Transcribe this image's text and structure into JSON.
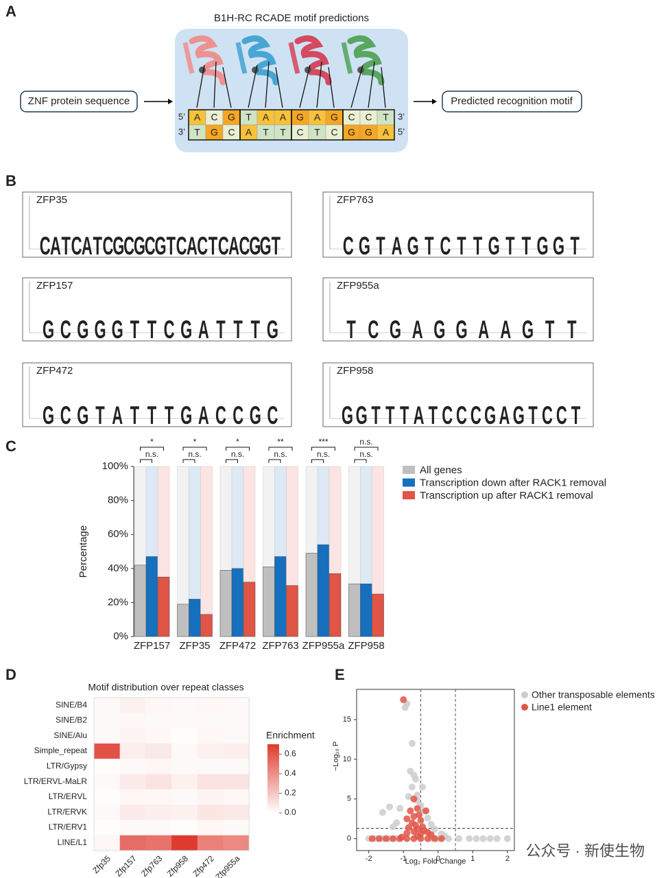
{
  "panel_labels": [
    "A",
    "B",
    "C",
    "D",
    "E"
  ],
  "diagram": {
    "title": "B1H-RC RCADE motif predictions",
    "input": "ZNF protein sequence",
    "output": "Predicted recognition motif",
    "five_prime": "5’",
    "three_prime": "3’",
    "top_strand": [
      "A",
      "C",
      "G",
      "T",
      "A",
      "A",
      "G",
      "A",
      "G",
      "C",
      "C",
      "T"
    ],
    "bottom_strand": [
      "T",
      "G",
      "C",
      "A",
      "T",
      "T",
      "C",
      "T",
      "C",
      "G",
      "G",
      "A"
    ]
  },
  "logos": {
    "colors": {
      "A": "#c8282d",
      "C": "#233d98",
      "G": "#f2a516",
      "T": "#17743a"
    },
    "items": [
      {
        "name": "ZFP35",
        "letters": [
          "C",
          "A",
          "T",
          "C",
          "A",
          "T",
          "C",
          "G",
          "C",
          "G",
          "C",
          "G",
          "T",
          "C",
          "A",
          "C",
          "T",
          "C",
          "A",
          "C",
          "G",
          "G",
          "T"
        ]
      },
      {
        "name": "ZFP763",
        "letters": [
          "C",
          "G",
          "T",
          "A",
          "G",
          "T",
          "C",
          "T",
          "T",
          "G",
          "T",
          "T",
          "G",
          "G",
          "T"
        ]
      },
      {
        "name": "ZFP157",
        "letters": [
          "G",
          "C",
          "G",
          "G",
          "G",
          "T",
          "T",
          "C",
          "G",
          "A",
          "T",
          "T",
          "T",
          "G"
        ]
      },
      {
        "name": "ZFP955a",
        "letters": [
          "T",
          "C",
          "G",
          "A",
          "G",
          "G",
          "A",
          "A",
          "G",
          "T",
          "T"
        ]
      },
      {
        "name": "ZFP472",
        "letters": [
          "G",
          "C",
          "G",
          "T",
          "A",
          "T",
          "T",
          "T",
          "G",
          "A",
          "C",
          "C",
          "G",
          "C"
        ]
      },
      {
        "name": "ZFP958",
        "letters": [
          "G",
          "G",
          "T",
          "T",
          "T",
          "A",
          "T",
          "C",
          "C",
          "C",
          "G",
          "A",
          "G",
          "T",
          "C",
          "C",
          "T"
        ]
      }
    ]
  },
  "chart_data": [
    {
      "type": "bar",
      "ylabel": "Percentage",
      "categories": [
        "ZFP157",
        "ZFP35",
        "ZFP472",
        "ZFP763",
        "ZFP955a",
        "ZFP958"
      ],
      "series": [
        {
          "name": "All genes",
          "color": "#bfbfbf",
          "background": "#f2f2f2",
          "values": [
            42,
            19,
            39,
            41,
            49,
            31
          ]
        },
        {
          "name": "Transcription down after RACK1 removal",
          "color": "#1670bd",
          "background": "#dde9f4",
          "values": [
            47,
            22,
            40,
            47,
            54,
            31
          ]
        },
        {
          "name": "Transcription up after RACK1 removal",
          "color": "#e05546",
          "background": "#fbe4e2",
          "values": [
            35,
            13,
            32,
            30,
            37,
            25
          ]
        }
      ],
      "ylim": [
        0,
        100
      ],
      "yticks": [
        {
          "value": 0,
          "label": "0%"
        },
        {
          "value": 20,
          "label": "20%"
        },
        {
          "value": 40,
          "label": "40%"
        },
        {
          "value": 60,
          "label": "60%"
        },
        {
          "value": 80,
          "label": "80%"
        },
        {
          "value": 100,
          "label": "100%"
        }
      ],
      "annotations_outer": [
        "*",
        "*",
        "*",
        "**",
        "***",
        "n.s."
      ],
      "annotations_inner": [
        "n.s.",
        "n.s.",
        "n.s.",
        "n.s.",
        "n.s.",
        "n.s."
      ]
    },
    {
      "type": "heatmap",
      "title": "Motif distribution over repeat classes",
      "rows": [
        "SINE/B4",
        "SINE/B2",
        "SINE/Alu",
        "Simple_repeat",
        "LTR/Gypsy",
        "LTR/ERVL-MaLR",
        "LTR/ERVL",
        "LTR/ERVK",
        "LTR/ERV1",
        "LINE/L1"
      ],
      "columns": [
        "Zfp35",
        "Zfp157",
        "Zfp763",
        "Zfp958",
        "Zfp472",
        "Zfp955a"
      ],
      "values": [
        [
          0.02,
          0.05,
          0.03,
          0.02,
          0.03,
          0.02
        ],
        [
          0.02,
          0.03,
          0.02,
          0.02,
          0.02,
          0.02
        ],
        [
          0.02,
          0.04,
          0.03,
          0.01,
          0.03,
          0.02
        ],
        [
          0.62,
          0.06,
          0.08,
          0.02,
          0.05,
          0.06
        ],
        [
          0.01,
          0.02,
          0.03,
          0.02,
          0.02,
          0.02
        ],
        [
          0.02,
          0.07,
          0.1,
          0.05,
          0.1,
          0.1
        ],
        [
          0.01,
          0.03,
          0.03,
          0.02,
          0.04,
          0.03
        ],
        [
          0.02,
          0.07,
          0.06,
          0.05,
          0.09,
          0.08
        ],
        [
          0.01,
          0.02,
          0.02,
          0.01,
          0.03,
          0.02
        ],
        [
          0.03,
          0.52,
          0.5,
          0.7,
          0.45,
          0.42
        ]
      ],
      "colorbar_title": "Enrichment",
      "zlim": [
        0,
        0.7
      ],
      "color_low": "#ffffff",
      "color_high": "#de3b2e",
      "zticks": [
        {
          "value": 0,
          "label": "0.0"
        },
        0.2,
        0.4,
        0.6
      ]
    },
    {
      "type": "scatter",
      "xlabel": "Log₂ Fold Change",
      "ylabel": "−Log₁₀ P",
      "xlim": [
        -2.35,
        2.2
      ],
      "ylim": [
        -1.5,
        18.8
      ],
      "xticks": [
        -2,
        -1,
        0,
        1,
        2
      ],
      "yticks": [
        0,
        5,
        10,
        15
      ],
      "vlines": [
        -0.5,
        0.5
      ],
      "hline": 1.3,
      "legend": "top-right",
      "series": [
        {
          "name": "Other transposable elements",
          "color": "#cccccc",
          "x": [
            -2,
            -1.8,
            -1.6,
            -1.4,
            -1.2,
            -0.2,
            0,
            0.3,
            0.6,
            0.9,
            1.1,
            1.3,
            1.5,
            1.7,
            2,
            -0.9,
            -0.95,
            -0.75,
            -0.8,
            -0.7,
            -0.65,
            -0.75,
            -0.6,
            -0.85,
            -0.6,
            -0.5,
            -0.4,
            -1.1,
            -1.4,
            -1.6,
            -0.3,
            -0.2,
            -1.2,
            -0.1,
            0.1,
            -1.3,
            0.2,
            -0.45
          ],
          "y": [
            0,
            0,
            0,
            0,
            0,
            0,
            0,
            0,
            0,
            0,
            0,
            0,
            0,
            0,
            0,
            17,
            16.5,
            12,
            8.5,
            8,
            7.5,
            6.5,
            5.5,
            5.3,
            4.8,
            4.2,
            3.5,
            3.8,
            4,
            3.3,
            2.6,
            1.8,
            2,
            1.2,
            0.6,
            1.5,
            0.3,
            6.5
          ]
        },
        {
          "name": "Line1 element",
          "color": "#e05546",
          "x": [
            -1,
            -0.7,
            -0.6,
            -0.8,
            -0.55,
            -0.7,
            -0.9,
            -0.5,
            -0.75,
            -0.65,
            -0.45,
            -0.85,
            -0.6,
            -0.4,
            -0.3,
            -0.7,
            -0.5,
            -0.2,
            -0.9,
            -0.6,
            -1.9,
            -1.7,
            -1.5,
            -1.3,
            -1.1,
            -0.9,
            -0.7,
            -0.5,
            -0.3,
            -0.1,
            0.1,
            -1.05,
            -0.35
          ],
          "y": [
            17.5,
            5,
            3.8,
            3.5,
            3,
            2.8,
            2.5,
            2.3,
            2,
            1.7,
            1.5,
            1.4,
            1.2,
            1,
            0.8,
            0.9,
            0.6,
            0.5,
            0.7,
            0.3,
            0,
            0,
            0,
            0,
            0,
            0,
            0,
            0,
            0,
            0,
            0,
            0.2,
            3.5
          ]
        }
      ]
    }
  ],
  "watermark": "公众号 · 新使生物"
}
